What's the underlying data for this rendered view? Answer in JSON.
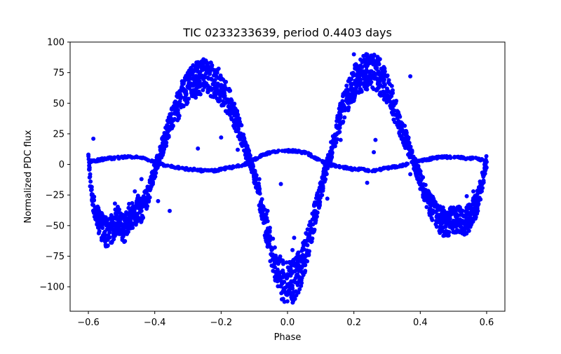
{
  "chart_data": {
    "type": "scatter",
    "title": "TIC 0233233639, period 0.4403 days",
    "xlabel": "Phase",
    "ylabel": "Normalized PDC flux",
    "xlim": [
      -0.655,
      0.655
    ],
    "ylim": [
      -120,
      100
    ],
    "grid": false,
    "marker_color": "#0000ff",
    "x_ticks": [
      {
        "value": -0.6,
        "label": "−0.6"
      },
      {
        "value": -0.4,
        "label": "−0.4"
      },
      {
        "value": -0.2,
        "label": "−0.2"
      },
      {
        "value": 0.0,
        "label": "0.0"
      },
      {
        "value": 0.2,
        "label": "0.2"
      },
      {
        "value": 0.4,
        "label": "0.4"
      },
      {
        "value": 0.6,
        "label": "0.6"
      }
    ],
    "y_ticks": [
      {
        "value": -100,
        "label": "−100"
      },
      {
        "value": -75,
        "label": "−75"
      },
      {
        "value": -50,
        "label": "−50"
      },
      {
        "value": -25,
        "label": "−25"
      },
      {
        "value": 0,
        "label": "0"
      },
      {
        "value": 25,
        "label": "25"
      },
      {
        "value": 50,
        "label": "50"
      },
      {
        "value": 75,
        "label": "75"
      },
      {
        "value": 100,
        "label": "100"
      }
    ],
    "series": [
      {
        "description_shape": "main light curve",
        "points": [
          [
            -0.6,
            8
          ],
          [
            -0.595,
            -10
          ],
          [
            -0.59,
            -25
          ],
          [
            -0.58,
            -35
          ],
          [
            -0.57,
            -45
          ],
          [
            -0.56,
            -50
          ],
          [
            -0.55,
            -55
          ],
          [
            -0.54,
            -58
          ],
          [
            -0.53,
            -52
          ],
          [
            -0.52,
            -48
          ],
          [
            -0.51,
            -45
          ],
          [
            -0.5,
            -50
          ],
          [
            -0.49,
            -55
          ],
          [
            -0.48,
            -44
          ],
          [
            -0.47,
            -40
          ],
          [
            -0.46,
            -45
          ],
          [
            -0.45,
            -35
          ],
          [
            -0.44,
            -38
          ],
          [
            -0.43,
            -30
          ],
          [
            -0.42,
            -25
          ],
          [
            -0.41,
            -15
          ],
          [
            -0.4,
            -5
          ],
          [
            -0.39,
            5
          ],
          [
            -0.38,
            12
          ],
          [
            -0.37,
            20
          ],
          [
            -0.36,
            28
          ],
          [
            -0.35,
            35
          ],
          [
            -0.34,
            42
          ],
          [
            -0.33,
            48
          ],
          [
            -0.32,
            55
          ],
          [
            -0.31,
            60
          ],
          [
            -0.3,
            63
          ],
          [
            -0.29,
            66
          ],
          [
            -0.28,
            68
          ],
          [
            -0.27,
            70
          ],
          [
            -0.26,
            71
          ],
          [
            -0.25,
            72
          ],
          [
            -0.24,
            71
          ],
          [
            -0.23,
            70
          ],
          [
            -0.22,
            68
          ],
          [
            -0.21,
            66
          ],
          [
            -0.2,
            62
          ],
          [
            -0.19,
            58
          ],
          [
            -0.18,
            53
          ],
          [
            -0.17,
            47
          ],
          [
            -0.16,
            40
          ],
          [
            -0.15,
            33
          ],
          [
            -0.14,
            25
          ],
          [
            -0.13,
            16
          ],
          [
            -0.12,
            8
          ],
          [
            -0.11,
            0
          ],
          [
            -0.1,
            -10
          ],
          [
            -0.09,
            -20
          ],
          [
            -0.08,
            -32
          ],
          [
            -0.07,
            -45
          ],
          [
            -0.06,
            -58
          ],
          [
            -0.05,
            -68
          ],
          [
            -0.04,
            -78
          ],
          [
            -0.03,
            -86
          ],
          [
            -0.02,
            -92
          ],
          [
            -0.01,
            -96
          ],
          [
            0.0,
            -98
          ],
          [
            0.01,
            -97
          ],
          [
            0.02,
            -95
          ],
          [
            0.03,
            -90
          ],
          [
            0.04,
            -84
          ],
          [
            0.05,
            -76
          ],
          [
            0.06,
            -66
          ],
          [
            0.07,
            -55
          ],
          [
            0.08,
            -44
          ],
          [
            0.09,
            -33
          ],
          [
            0.1,
            -22
          ],
          [
            0.11,
            -10
          ],
          [
            0.12,
            0
          ],
          [
            0.13,
            10
          ],
          [
            0.14,
            20
          ],
          [
            0.15,
            30
          ],
          [
            0.16,
            40
          ],
          [
            0.17,
            48
          ],
          [
            0.18,
            55
          ],
          [
            0.19,
            61
          ],
          [
            0.2,
            66
          ],
          [
            0.21,
            70
          ],
          [
            0.22,
            73
          ],
          [
            0.23,
            75
          ],
          [
            0.24,
            76
          ],
          [
            0.25,
            76
          ],
          [
            0.26,
            75
          ],
          [
            0.27,
            74
          ],
          [
            0.28,
            71
          ],
          [
            0.29,
            67
          ],
          [
            0.3,
            62
          ],
          [
            0.31,
            55
          ],
          [
            0.32,
            48
          ],
          [
            0.33,
            40
          ],
          [
            0.34,
            32
          ],
          [
            0.35,
            25
          ],
          [
            0.36,
            18
          ],
          [
            0.37,
            10
          ],
          [
            0.38,
            2
          ],
          [
            0.39,
            -5
          ],
          [
            0.4,
            -12
          ],
          [
            0.41,
            -20
          ],
          [
            0.42,
            -27
          ],
          [
            0.43,
            -33
          ],
          [
            0.44,
            -38
          ],
          [
            0.45,
            -42
          ],
          [
            0.46,
            -45
          ],
          [
            0.47,
            -47
          ],
          [
            0.48,
            -48
          ],
          [
            0.49,
            -47
          ],
          [
            0.5,
            -46
          ],
          [
            0.51,
            -44
          ],
          [
            0.52,
            -45
          ],
          [
            0.53,
            -48
          ],
          [
            0.54,
            -46
          ],
          [
            0.55,
            -42
          ],
          [
            0.56,
            -38
          ],
          [
            0.57,
            -32
          ],
          [
            0.58,
            -22
          ],
          [
            0.59,
            -10
          ],
          [
            0.595,
            -2
          ],
          [
            0.6,
            2
          ]
        ]
      },
      {
        "description_shape": "secondary flat sequence",
        "points": [
          [
            -0.6,
            2
          ],
          [
            -0.58,
            3
          ],
          [
            -0.56,
            4
          ],
          [
            -0.54,
            5
          ],
          [
            -0.52,
            5
          ],
          [
            -0.5,
            6
          ],
          [
            -0.48,
            6
          ],
          [
            -0.46,
            6
          ],
          [
            -0.44,
            5
          ],
          [
            -0.42,
            4
          ],
          [
            -0.4,
            2
          ],
          [
            -0.38,
            0
          ],
          [
            -0.36,
            -1
          ],
          [
            -0.34,
            -2
          ],
          [
            -0.32,
            -3
          ],
          [
            -0.3,
            -4
          ],
          [
            -0.28,
            -4
          ],
          [
            -0.26,
            -5
          ],
          [
            -0.24,
            -5
          ],
          [
            -0.22,
            -5
          ],
          [
            -0.2,
            -4
          ],
          [
            -0.18,
            -3
          ],
          [
            -0.16,
            -2
          ],
          [
            -0.14,
            -1
          ],
          [
            -0.12,
            1
          ],
          [
            -0.1,
            4
          ],
          [
            -0.08,
            7
          ],
          [
            -0.06,
            9
          ],
          [
            -0.04,
            10
          ],
          [
            -0.02,
            11
          ],
          [
            0.0,
            11
          ],
          [
            0.02,
            11
          ],
          [
            0.04,
            10
          ],
          [
            0.06,
            9
          ],
          [
            0.08,
            6
          ],
          [
            0.1,
            3
          ],
          [
            0.12,
            0
          ],
          [
            0.14,
            -1
          ],
          [
            0.16,
            -2
          ],
          [
            0.18,
            -3
          ],
          [
            0.2,
            -4
          ],
          [
            0.22,
            -4
          ],
          [
            0.24,
            -5
          ],
          [
            0.26,
            -5
          ],
          [
            0.28,
            -4
          ],
          [
            0.3,
            -3
          ],
          [
            0.32,
            -2
          ],
          [
            0.34,
            -1
          ],
          [
            0.36,
            0
          ],
          [
            0.38,
            2
          ],
          [
            0.4,
            3
          ],
          [
            0.42,
            4
          ],
          [
            0.44,
            5
          ],
          [
            0.46,
            6
          ],
          [
            0.48,
            6
          ],
          [
            0.5,
            6
          ],
          [
            0.52,
            6
          ],
          [
            0.54,
            5
          ],
          [
            0.56,
            5
          ],
          [
            0.58,
            4
          ],
          [
            0.6,
            3
          ]
        ]
      },
      {
        "description_shape": "outliers",
        "points": [
          [
            -0.585,
            21
          ],
          [
            -0.44,
            -12
          ],
          [
            -0.39,
            -30
          ],
          [
            -0.355,
            -38
          ],
          [
            -0.46,
            -22
          ],
          [
            -0.52,
            -32
          ],
          [
            -0.56,
            -60
          ],
          [
            -0.2,
            22
          ],
          [
            -0.15,
            12
          ],
          [
            -0.06,
            -38
          ],
          [
            -0.02,
            -16
          ],
          [
            0.02,
            -60
          ],
          [
            0.015,
            -70
          ],
          [
            0.05,
            -75
          ],
          [
            0.12,
            -28
          ],
          [
            0.16,
            20
          ],
          [
            0.2,
            90
          ],
          [
            0.24,
            -15
          ],
          [
            0.265,
            20
          ],
          [
            0.37,
            72
          ],
          [
            0.37,
            -8
          ],
          [
            0.4,
            -20
          ],
          [
            0.43,
            -28
          ],
          [
            0.52,
            -48
          ],
          [
            0.54,
            -26
          ],
          [
            0.56,
            -22
          ],
          [
            0.58,
            -14
          ],
          [
            0.26,
            10
          ],
          [
            -0.27,
            13
          ],
          [
            -0.085,
            -12
          ]
        ]
      }
    ]
  }
}
